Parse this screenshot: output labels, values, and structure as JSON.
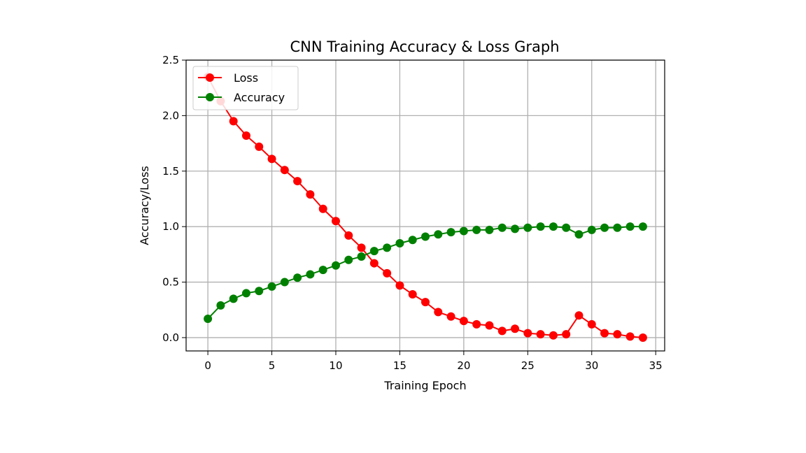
{
  "chart_data": {
    "type": "line",
    "title": "CNN Training Accuracy & Loss Graph",
    "xlabel": "Training Epoch",
    "ylabel": "Accuracy/Loss",
    "xlim": [
      -1.7,
      35.7
    ],
    "ylim": [
      -0.12,
      2.5
    ],
    "xticks": [
      0,
      5,
      10,
      15,
      20,
      25,
      30,
      35
    ],
    "yticks": [
      0.0,
      0.5,
      1.0,
      1.5,
      2.0,
      2.5
    ],
    "xtick_labels": [
      "0",
      "5",
      "10",
      "15",
      "20",
      "25",
      "30",
      "35"
    ],
    "ytick_labels": [
      "0.0",
      "0.5",
      "1.0",
      "1.5",
      "2.0",
      "2.5"
    ],
    "grid": true,
    "legend_position": "top-left",
    "x": [
      0,
      1,
      2,
      3,
      4,
      5,
      6,
      7,
      8,
      9,
      10,
      11,
      12,
      13,
      14,
      15,
      16,
      17,
      18,
      19,
      20,
      21,
      22,
      23,
      24,
      25,
      26,
      27,
      28,
      29,
      30,
      31,
      32,
      33,
      34
    ],
    "series": [
      {
        "name": "Loss",
        "color": "#ff0000",
        "values": [
          2.35,
          2.13,
          1.95,
          1.82,
          1.72,
          1.61,
          1.51,
          1.41,
          1.29,
          1.16,
          1.05,
          0.92,
          0.81,
          0.67,
          0.58,
          0.47,
          0.39,
          0.32,
          0.23,
          0.19,
          0.15,
          0.12,
          0.11,
          0.06,
          0.08,
          0.04,
          0.03,
          0.02,
          0.03,
          0.2,
          0.12,
          0.04,
          0.03,
          0.01,
          0.0
        ]
      },
      {
        "name": "Accuracy",
        "color": "#008000",
        "values": [
          0.17,
          0.29,
          0.35,
          0.4,
          0.42,
          0.46,
          0.5,
          0.54,
          0.57,
          0.61,
          0.65,
          0.7,
          0.73,
          0.78,
          0.81,
          0.85,
          0.88,
          0.91,
          0.93,
          0.95,
          0.96,
          0.97,
          0.97,
          0.99,
          0.98,
          0.99,
          1.0,
          1.0,
          0.99,
          0.93,
          0.97,
          0.99,
          0.99,
          1.0,
          1.0
        ]
      }
    ]
  }
}
